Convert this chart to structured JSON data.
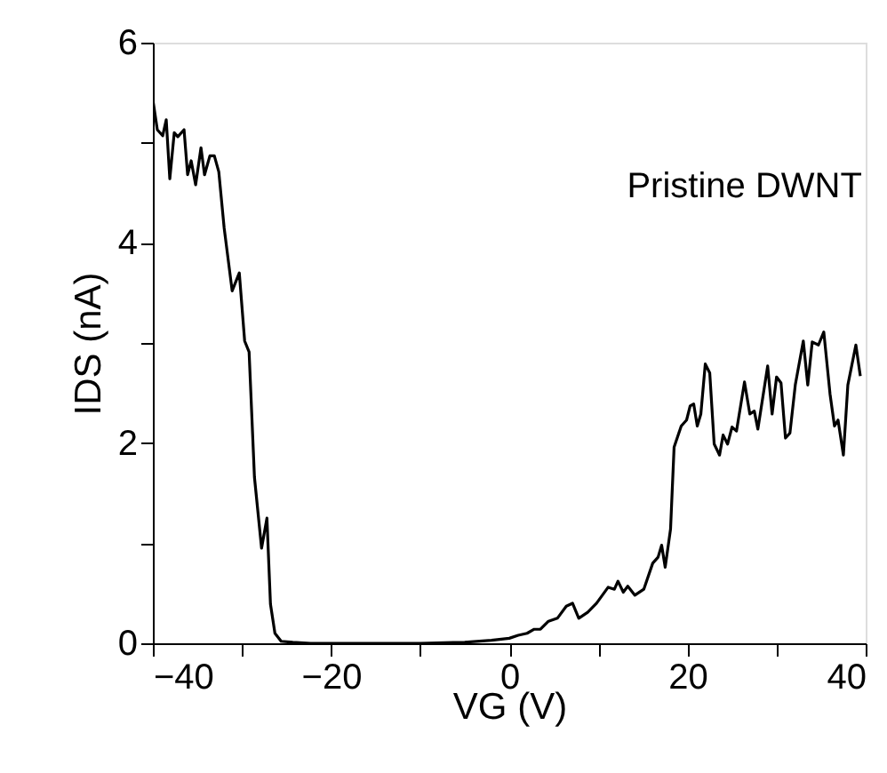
{
  "chart_data": {
    "type": "line",
    "xlabel": "VG (V)",
    "ylabel": "IDS (nA)",
    "annotations": [
      "Pristine DWNT"
    ],
    "xlim": [
      -40,
      40
    ],
    "ylim": [
      0,
      6
    ],
    "xticks": [
      -40,
      {
        "value": -30,
        "label": null
      },
      -20,
      {
        "value": -10,
        "label": null
      },
      0,
      {
        "value": 10,
        "label": null
      },
      20,
      {
        "value": 30,
        "label": null
      },
      40
    ],
    "yticks": [
      0,
      {
        "value": 1,
        "label": null
      },
      2,
      {
        "value": 3,
        "label": null
      },
      4,
      {
        "value": 5,
        "label": null
      },
      6
    ],
    "grid": false,
    "legend": false,
    "marker": "none",
    "line_style": "solid",
    "series": [
      {
        "color": "#000000",
        "x": [
          -40,
          -39.5,
          -38.9,
          -38.5,
          -38.1,
          -37.6,
          -37.2,
          -36.5,
          -36.1,
          -35.7,
          -35.2,
          -34.6,
          -34.2,
          -33.6,
          -33.1,
          -32.6,
          -32.0,
          -31.1,
          -30.3,
          -29.7,
          -29.2,
          -28.6,
          -27.8,
          -27.2,
          -26.8,
          -26.3,
          -25.6,
          -24.3,
          -22.3,
          -10,
          -5,
          -2,
          0,
          1,
          2,
          2.8,
          3.5,
          4.4,
          5.4,
          6.4,
          7.1,
          7.8,
          8.8,
          9.8,
          11.1,
          11.8,
          12.2,
          12.8,
          13.3,
          14.1,
          15.1,
          16.1,
          16.7,
          17.1,
          17.5,
          18.1,
          18.5,
          19.3,
          19.9,
          20.3,
          20.7,
          21.1,
          21.5,
          22.0,
          22.5,
          23.0,
          23.6,
          24.0,
          24.5,
          25.0,
          25.5,
          26.4,
          27.0,
          27.5,
          27.9,
          29.0,
          29.5,
          30.0,
          30.5,
          31.0,
          31.5,
          32.1,
          33.0,
          33.5,
          34.0,
          34.7,
          35.3,
          36.0,
          36.5,
          36.9,
          37.5,
          38.0,
          38.9,
          39.4
        ],
        "values": [
          5.43,
          5.13,
          5.07,
          5.23,
          4.64,
          5.1,
          5.06,
          5.13,
          4.68,
          4.82,
          4.58,
          4.95,
          4.68,
          4.87,
          4.87,
          4.71,
          4.15,
          3.52,
          3.7,
          3.02,
          2.91,
          1.66,
          0.95,
          1.25,
          0.39,
          0.1,
          0.02,
          0.01,
          0.0,
          0.0,
          0.01,
          0.03,
          0.05,
          0.08,
          0.1,
          0.14,
          0.14,
          0.22,
          0.25,
          0.37,
          0.4,
          0.25,
          0.31,
          0.4,
          0.56,
          0.54,
          0.62,
          0.51,
          0.57,
          0.48,
          0.54,
          0.8,
          0.86,
          0.98,
          0.76,
          1.14,
          1.96,
          2.17,
          2.23,
          2.37,
          2.39,
          2.17,
          2.29,
          2.79,
          2.7,
          1.99,
          1.88,
          2.08,
          1.99,
          2.16,
          2.12,
          2.61,
          2.29,
          2.32,
          2.14,
          2.77,
          2.29,
          2.66,
          2.6,
          2.05,
          2.1,
          2.58,
          3.02,
          2.58,
          3.01,
          2.98,
          3.11,
          2.49,
          2.17,
          2.23,
          1.88,
          2.58,
          2.98,
          2.67
        ]
      }
    ]
  }
}
